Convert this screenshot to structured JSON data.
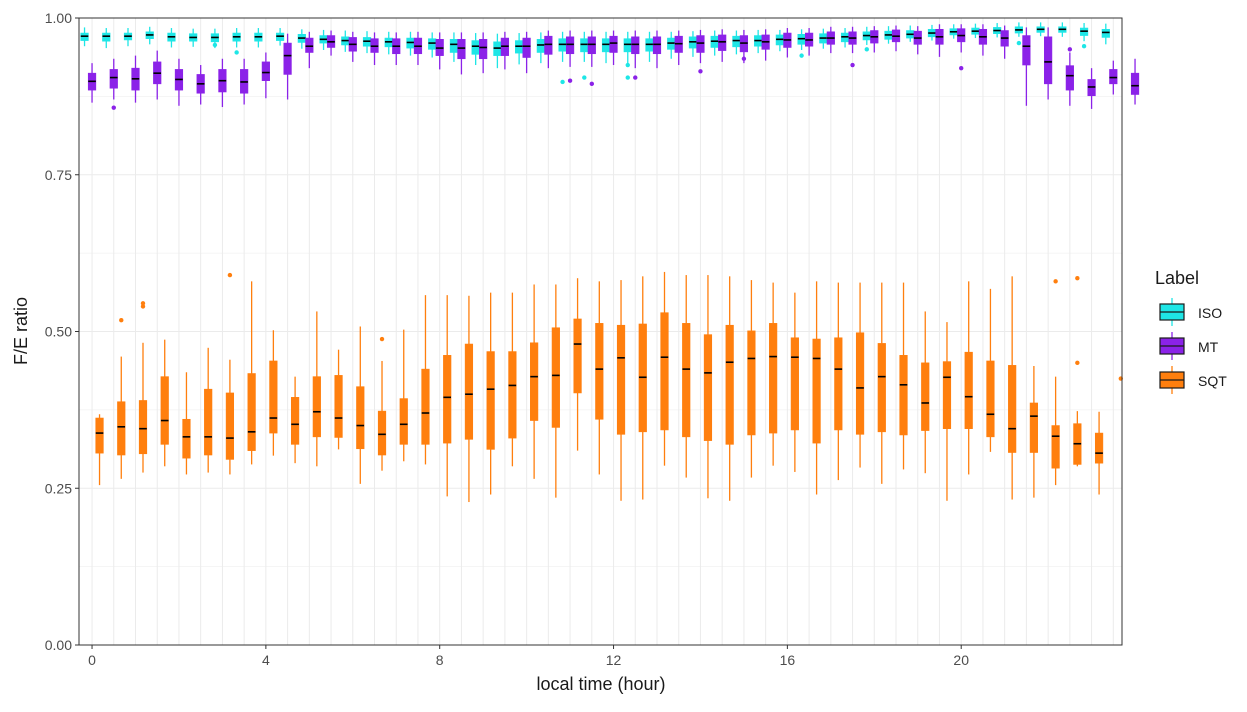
{
  "chart_data": {
    "type": "boxplot",
    "xlabel": "local time (hour)",
    "ylabel": "F/E ratio",
    "x_ticks": [
      0,
      4,
      8,
      12,
      16,
      20
    ],
    "x_tick_labels": [
      "0",
      "4",
      "8",
      "12",
      "16",
      "20"
    ],
    "y_ticks": [
      0,
      0.25,
      0.5,
      0.75,
      1.0
    ],
    "y_tick_labels": [
      "0.00",
      "0.25",
      "0.50",
      "0.75",
      "1.00"
    ],
    "xlim": [
      -0.3,
      23.7
    ],
    "ylim": [
      0,
      1.0
    ],
    "box_time_step_hours": 0.5,
    "grid": true,
    "legend": {
      "title": "Label",
      "placement": "right",
      "entries": [
        "ISO",
        "MT",
        "SQT"
      ]
    },
    "series": [
      {
        "name": "ISO",
        "color": "#1ee6e6",
        "median": [
          0.971,
          0.971,
          0.971,
          0.973,
          0.97,
          0.969,
          0.969,
          0.97,
          0.97,
          0.971,
          0.968,
          0.966,
          0.964,
          0.963,
          0.962,
          0.961,
          0.96,
          0.958,
          0.955,
          0.952,
          0.955,
          0.957,
          0.958,
          0.958,
          0.958,
          0.958,
          0.958,
          0.96,
          0.962,
          0.963,
          0.964,
          0.964,
          0.966,
          0.967,
          0.968,
          0.97,
          0.972,
          0.973,
          0.974,
          0.976,
          0.978,
          0.979,
          0.98,
          0.981,
          0.982,
          0.982,
          0.979,
          0.977
        ],
        "q1": [
          0.964,
          0.963,
          0.965,
          0.967,
          0.963,
          0.963,
          0.962,
          0.963,
          0.963,
          0.964,
          0.961,
          0.96,
          0.957,
          0.955,
          0.954,
          0.952,
          0.95,
          0.945,
          0.942,
          0.94,
          0.944,
          0.945,
          0.947,
          0.946,
          0.946,
          0.946,
          0.947,
          0.95,
          0.952,
          0.953,
          0.954,
          0.955,
          0.957,
          0.958,
          0.96,
          0.962,
          0.965,
          0.966,
          0.968,
          0.97,
          0.973,
          0.974,
          0.975,
          0.976,
          0.977,
          0.977,
          0.972,
          0.969
        ],
        "q3": [
          0.976,
          0.976,
          0.976,
          0.978,
          0.976,
          0.975,
          0.975,
          0.976,
          0.976,
          0.976,
          0.974,
          0.972,
          0.97,
          0.969,
          0.968,
          0.968,
          0.967,
          0.966,
          0.964,
          0.962,
          0.964,
          0.966,
          0.967,
          0.967,
          0.967,
          0.967,
          0.967,
          0.968,
          0.97,
          0.971,
          0.971,
          0.972,
          0.973,
          0.974,
          0.975,
          0.976,
          0.978,
          0.979,
          0.98,
          0.982,
          0.983,
          0.984,
          0.985,
          0.986,
          0.986,
          0.986,
          0.984,
          0.982
        ],
        "lower": [
          0.955,
          0.952,
          0.955,
          0.958,
          0.953,
          0.954,
          0.952,
          0.953,
          0.953,
          0.956,
          0.951,
          0.949,
          0.946,
          0.944,
          0.942,
          0.94,
          0.937,
          0.93,
          0.925,
          0.92,
          0.926,
          0.928,
          0.93,
          0.93,
          0.928,
          0.928,
          0.93,
          0.935,
          0.938,
          0.94,
          0.942,
          0.944,
          0.947,
          0.949,
          0.951,
          0.953,
          0.957,
          0.959,
          0.962,
          0.964,
          0.967,
          0.968,
          0.969,
          0.97,
          0.971,
          0.97,
          0.963,
          0.958
        ],
        "upper": [
          0.985,
          0.984,
          0.984,
          0.986,
          0.984,
          0.983,
          0.983,
          0.984,
          0.984,
          0.984,
          0.982,
          0.981,
          0.98,
          0.979,
          0.978,
          0.978,
          0.977,
          0.977,
          0.976,
          0.975,
          0.976,
          0.977,
          0.978,
          0.978,
          0.978,
          0.978,
          0.978,
          0.978,
          0.979,
          0.98,
          0.98,
          0.981,
          0.981,
          0.982,
          0.983,
          0.984,
          0.986,
          0.987,
          0.988,
          0.989,
          0.99,
          0.991,
          0.992,
          0.993,
          0.993,
          0.993,
          0.992,
          0.991
        ],
        "outliers": [
          [
            3.0,
            0.957
          ],
          [
            3.5,
            0.945
          ],
          [
            11.0,
            0.898
          ],
          [
            11.5,
            0.905
          ],
          [
            12.5,
            0.925
          ],
          [
            12.5,
            0.905
          ],
          [
            16.5,
            0.94
          ],
          [
            18.0,
            0.95
          ],
          [
            21.5,
            0.96
          ],
          [
            23.0,
            0.955
          ]
        ]
      },
      {
        "name": "MT",
        "color": "#8b22e8",
        "median": [
          0.899,
          0.905,
          0.903,
          0.912,
          0.902,
          0.895,
          0.9,
          0.898,
          0.913,
          0.94,
          0.955,
          0.962,
          0.958,
          0.955,
          0.955,
          0.955,
          0.952,
          0.952,
          0.953,
          0.955,
          0.955,
          0.958,
          0.958,
          0.958,
          0.96,
          0.958,
          0.958,
          0.959,
          0.96,
          0.962,
          0.96,
          0.962,
          0.965,
          0.965,
          0.968,
          0.968,
          0.97,
          0.971,
          0.968,
          0.97,
          0.972,
          0.97,
          0.968,
          0.955,
          0.93,
          0.908,
          0.89,
          0.905,
          0.892
        ],
        "q1": [
          0.885,
          0.888,
          0.885,
          0.895,
          0.885,
          0.88,
          0.882,
          0.88,
          0.9,
          0.91,
          0.945,
          0.953,
          0.947,
          0.945,
          0.943,
          0.943,
          0.94,
          0.935,
          0.935,
          0.94,
          0.937,
          0.942,
          0.943,
          0.943,
          0.945,
          0.943,
          0.943,
          0.945,
          0.945,
          0.948,
          0.946,
          0.95,
          0.953,
          0.955,
          0.958,
          0.958,
          0.96,
          0.962,
          0.958,
          0.958,
          0.962,
          0.958,
          0.955,
          0.925,
          0.895,
          0.885,
          0.876,
          0.895,
          0.878
        ],
        "q3": [
          0.912,
          0.918,
          0.92,
          0.93,
          0.918,
          0.91,
          0.918,
          0.918,
          0.93,
          0.96,
          0.968,
          0.972,
          0.969,
          0.967,
          0.967,
          0.968,
          0.966,
          0.966,
          0.966,
          0.968,
          0.968,
          0.971,
          0.97,
          0.97,
          0.971,
          0.97,
          0.97,
          0.971,
          0.972,
          0.973,
          0.972,
          0.973,
          0.976,
          0.976,
          0.978,
          0.978,
          0.98,
          0.981,
          0.979,
          0.982,
          0.983,
          0.982,
          0.98,
          0.972,
          0.97,
          0.924,
          0.902,
          0.918,
          0.912
        ],
        "lower": [
          0.865,
          0.87,
          0.865,
          0.87,
          0.86,
          0.862,
          0.858,
          0.862,
          0.872,
          0.87,
          0.92,
          0.94,
          0.93,
          0.925,
          0.925,
          0.925,
          0.918,
          0.91,
          0.912,
          0.918,
          0.912,
          0.92,
          0.922,
          0.922,
          0.925,
          0.92,
          0.92,
          0.925,
          0.928,
          0.93,
          0.928,
          0.932,
          0.937,
          0.94,
          0.944,
          0.944,
          0.945,
          0.947,
          0.942,
          0.938,
          0.945,
          0.94,
          0.935,
          0.86,
          0.87,
          0.86,
          0.855,
          0.878,
          0.862
        ],
        "upper": [
          0.928,
          0.935,
          0.94,
          0.948,
          0.935,
          0.925,
          0.935,
          0.935,
          0.945,
          0.975,
          0.978,
          0.98,
          0.978,
          0.977,
          0.977,
          0.978,
          0.977,
          0.977,
          0.977,
          0.978,
          0.978,
          0.98,
          0.98,
          0.98,
          0.98,
          0.98,
          0.98,
          0.98,
          0.981,
          0.982,
          0.981,
          0.982,
          0.984,
          0.984,
          0.986,
          0.986,
          0.987,
          0.988,
          0.987,
          0.99,
          0.99,
          0.99,
          0.988,
          0.985,
          0.985,
          0.945,
          0.92,
          0.932,
          0.935
        ],
        "outliers": [
          [
            0.5,
            0.857
          ],
          [
            11.0,
            0.9
          ],
          [
            11.5,
            0.895
          ],
          [
            12.5,
            0.905
          ],
          [
            14.0,
            0.915
          ],
          [
            15.0,
            0.935
          ],
          [
            17.5,
            0.925
          ],
          [
            20.0,
            0.92
          ],
          [
            22.5,
            0.95
          ]
        ]
      },
      {
        "name": "SQT",
        "color": "#ff7f0e",
        "median": [
          0.338,
          0.348,
          0.345,
          0.358,
          0.332,
          0.332,
          0.33,
          0.34,
          0.362,
          0.352,
          0.372,
          0.362,
          0.35,
          0.336,
          0.352,
          0.37,
          0.395,
          0.4,
          0.408,
          0.414,
          0.428,
          0.43,
          0.48,
          0.44,
          0.458,
          0.427,
          0.459,
          0.44,
          0.434,
          0.451,
          0.457,
          0.46,
          0.459,
          0.457,
          0.44,
          0.41,
          0.428,
          0.415,
          0.386,
          0.427,
          0.396,
          0.368,
          0.345,
          0.365,
          0.333,
          0.321,
          0.306
        ],
        "q1": [
          0.306,
          0.303,
          0.305,
          0.32,
          0.298,
          0.303,
          0.296,
          0.31,
          0.338,
          0.32,
          0.332,
          0.331,
          0.313,
          0.303,
          0.32,
          0.32,
          0.322,
          0.328,
          0.312,
          0.33,
          0.358,
          0.347,
          0.402,
          0.36,
          0.336,
          0.34,
          0.343,
          0.332,
          0.326,
          0.32,
          0.335,
          0.338,
          0.343,
          0.322,
          0.343,
          0.336,
          0.34,
          0.335,
          0.342,
          0.345,
          0.345,
          0.332,
          0.307,
          0.307,
          0.282,
          0.288,
          0.29
        ],
        "q3": [
          0.362,
          0.388,
          0.39,
          0.428,
          0.36,
          0.408,
          0.402,
          0.433,
          0.453,
          0.395,
          0.428,
          0.43,
          0.412,
          0.373,
          0.393,
          0.44,
          0.462,
          0.48,
          0.468,
          0.468,
          0.482,
          0.506,
          0.52,
          0.513,
          0.51,
          0.512,
          0.53,
          0.513,
          0.495,
          0.51,
          0.501,
          0.513,
          0.49,
          0.488,
          0.49,
          0.498,
          0.481,
          0.462,
          0.45,
          0.452,
          0.467,
          0.453,
          0.446,
          0.386,
          0.35,
          0.353,
          0.338
        ],
        "lower": [
          0.255,
          0.265,
          0.275,
          0.285,
          0.272,
          0.275,
          0.272,
          0.288,
          0.302,
          0.29,
          0.285,
          0.312,
          0.257,
          0.278,
          0.293,
          0.288,
          0.237,
          0.228,
          0.24,
          0.285,
          0.265,
          0.235,
          0.31,
          0.272,
          0.23,
          0.232,
          0.286,
          0.267,
          0.234,
          0.23,
          0.267,
          0.286,
          0.276,
          0.24,
          0.263,
          0.283,
          0.257,
          0.28,
          0.274,
          0.23,
          0.272,
          0.308,
          0.232,
          0.235,
          0.255,
          0.285,
          0.24
        ],
        "upper": [
          0.368,
          0.46,
          0.482,
          0.487,
          0.435,
          0.474,
          0.455,
          0.58,
          0.502,
          0.428,
          0.532,
          0.471,
          0.508,
          0.453,
          0.503,
          0.558,
          0.558,
          0.557,
          0.562,
          0.562,
          0.575,
          0.575,
          0.585,
          0.58,
          0.582,
          0.588,
          0.595,
          0.59,
          0.59,
          0.588,
          0.582,
          0.578,
          0.562,
          0.58,
          0.578,
          0.578,
          0.578,
          0.578,
          0.532,
          0.515,
          0.58,
          0.568,
          0.588,
          0.445,
          0.428,
          0.373,
          0.372
        ],
        "outliers": [
          [
            0.5,
            0.518
          ],
          [
            1.0,
            0.545
          ],
          [
            1.0,
            0.54
          ],
          [
            3.0,
            0.59
          ],
          [
            6.5,
            0.488
          ],
          [
            22.0,
            0.58
          ],
          [
            22.5,
            0.585
          ],
          [
            22.5,
            0.45
          ],
          [
            23.5,
            0.425
          ]
        ]
      }
    ]
  }
}
